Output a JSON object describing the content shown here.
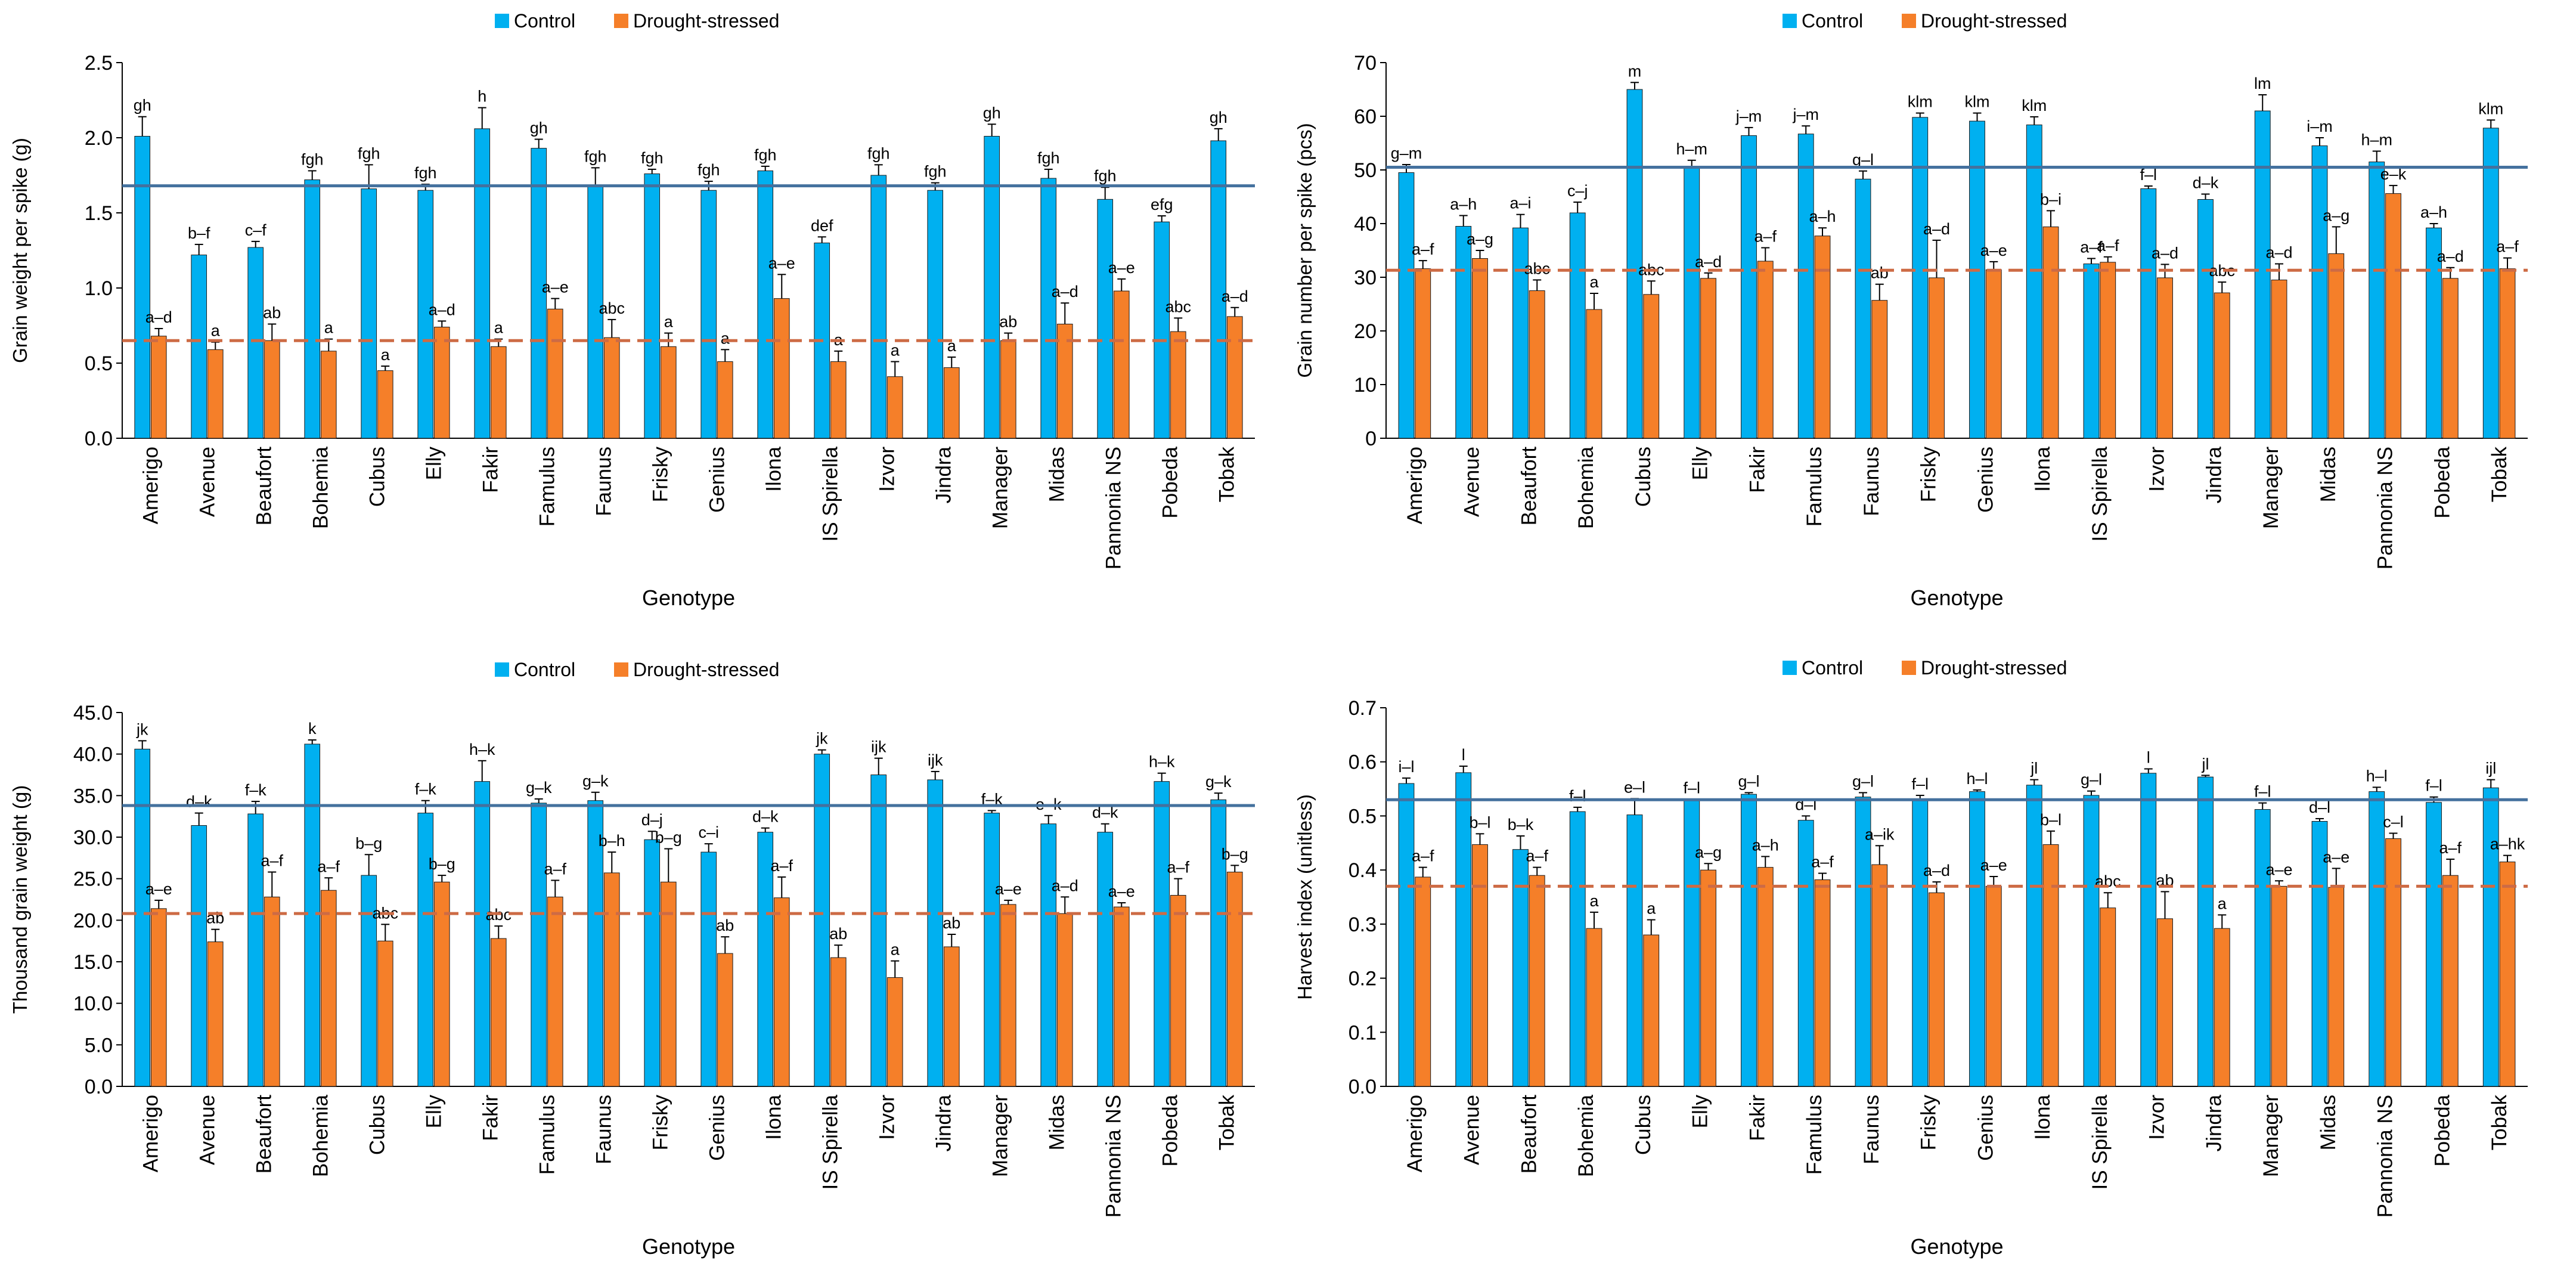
{
  "colors": {
    "control": "#00B0F0",
    "drought": "#F57F29",
    "control_line": "#44719E",
    "drought_line": "#CD6B45",
    "bar_edge": "#1A1A1A"
  },
  "legend": {
    "control": "Control",
    "drought": "Drought-stressed"
  },
  "genotypes": [
    "Amerigo",
    "Avenue",
    "Beaufort",
    "Bohemia",
    "Cubus",
    "Elly",
    "Fakir",
    "Famulus",
    "Faunus",
    "Frisky",
    "Genius",
    "Ilona",
    "IS Spirella",
    "Izvor",
    "Jindra",
    "Manager",
    "Midas",
    "Pannonia NS",
    "Pobeda",
    "Tobak"
  ],
  "chart_data": [
    {
      "type": "bar",
      "title": "",
      "xlabel": "Genotype",
      "ylabel": "Grain weight per spike (g)",
      "ylim": [
        0,
        2.5
      ],
      "ystep": 0.5,
      "ydecimals": 1,
      "legend_position": "top",
      "categories": [
        "Amerigo",
        "Avenue",
        "Beaufort",
        "Bohemia",
        "Cubus",
        "Elly",
        "Fakir",
        "Famulus",
        "Faunus",
        "Frisky",
        "Genius",
        "Ilona",
        "IS Spirella",
        "Izvor",
        "Jindra",
        "Manager",
        "Midas",
        "Pannonia NS",
        "Pobeda",
        "Tobak"
      ],
      "series": [
        {
          "name": "Control",
          "values": [
            2.01,
            1.22,
            1.27,
            1.72,
            1.66,
            1.65,
            2.06,
            1.93,
            1.68,
            1.76,
            1.65,
            1.78,
            1.3,
            1.75,
            1.65,
            2.01,
            1.73,
            1.59,
            1.44,
            1.98
          ],
          "errors": [
            0.13,
            0.07,
            0.04,
            0.06,
            0.16,
            0.04,
            0.14,
            0.06,
            0.12,
            0.03,
            0.06,
            0.03,
            0.04,
            0.07,
            0.05,
            0.08,
            0.06,
            0.08,
            0.04,
            0.08
          ],
          "labels": [
            "gh",
            "b–f",
            "c–f",
            "fgh",
            "fgh",
            "fgh",
            "h",
            "gh",
            "fgh",
            "fgh",
            "fgh",
            "fgh",
            "def",
            "fgh",
            "fgh",
            "gh",
            "fgh",
            "fgh",
            "efg",
            "gh"
          ]
        },
        {
          "name": "Drought-stressed",
          "values": [
            0.68,
            0.59,
            0.65,
            0.58,
            0.45,
            0.74,
            0.61,
            0.86,
            0.67,
            0.61,
            0.51,
            0.93,
            0.51,
            0.41,
            0.47,
            0.65,
            0.76,
            0.98,
            0.71,
            0.81
          ],
          "errors": [
            0.05,
            0.05,
            0.11,
            0.08,
            0.03,
            0.04,
            0.05,
            0.07,
            0.12,
            0.09,
            0.08,
            0.16,
            0.07,
            0.1,
            0.07,
            0.05,
            0.14,
            0.08,
            0.09,
            0.06
          ],
          "labels": [
            "a–d",
            "a",
            "ab",
            "a",
            "a",
            "a–d",
            "a",
            "a–e",
            "abc",
            "a",
            "a",
            "a–e",
            "a",
            "a",
            "a",
            "ab",
            "a–d",
            "a–e",
            "abc",
            "a–d"
          ]
        }
      ],
      "reference_lines": {
        "control_mean": 1.68,
        "drought_mean": 0.65
      }
    },
    {
      "type": "bar",
      "title": "",
      "xlabel": "Genotype",
      "ylabel": "Grain number per spike (pcs)",
      "ylim": [
        0,
        70
      ],
      "ystep": 10,
      "ydecimals": 0,
      "legend_position": "top",
      "categories": [
        "Amerigo",
        "Avenue",
        "Beaufort",
        "Bohemia",
        "Cubus",
        "Elly",
        "Fakir",
        "Famulus",
        "Faunus",
        "Frisky",
        "Genius",
        "Ilona",
        "IS Spirella",
        "Izvor",
        "Jindra",
        "Manager",
        "Midas",
        "Pannonia NS",
        "Pobeda",
        "Tobak"
      ],
      "series": [
        {
          "name": "Control",
          "values": [
            49.5,
            39.5,
            39.2,
            42.0,
            65.0,
            50.3,
            56.4,
            56.7,
            48.3,
            59.8,
            59.1,
            58.4,
            32.5,
            46.5,
            44.5,
            61.0,
            54.5,
            51.5,
            39.2,
            57.8
          ],
          "errors": [
            1.5,
            2.0,
            2.5,
            2.0,
            1.3,
            1.5,
            1.5,
            1.5,
            1.5,
            0.8,
            1.5,
            1.5,
            1.0,
            0.5,
            1.0,
            3.0,
            1.5,
            2.0,
            0.8,
            1.5
          ],
          "labels": [
            "g–m",
            "a–h",
            "a–i",
            "c–j",
            "m",
            "h–m",
            "j–m",
            "j–m",
            "g–l",
            "klm",
            "klm",
            "klm",
            "a–f",
            "f–l",
            "d–k",
            "lm",
            "i–m",
            "h–m",
            "a–h",
            "klm"
          ]
        },
        {
          "name": "Drought-stressed",
          "values": [
            31.6,
            33.5,
            27.5,
            24.0,
            26.8,
            29.8,
            33.0,
            37.7,
            25.7,
            29.9,
            31.4,
            39.4,
            32.8,
            29.9,
            27.1,
            29.5,
            34.4,
            45.6,
            29.8,
            31.6
          ],
          "errors": [
            1.5,
            1.5,
            2.0,
            3.0,
            2.5,
            1.0,
            2.5,
            1.5,
            3.0,
            7.0,
            1.5,
            3.0,
            1.0,
            2.5,
            2.0,
            3.0,
            5.0,
            1.5,
            2.0,
            2.0
          ],
          "labels": [
            "a–f",
            "a–g",
            "abc",
            "a",
            "abc",
            "a–d",
            "a–f",
            "a–h",
            "ab",
            "a–d",
            "a–e",
            "b–i",
            "a–f",
            "a–d",
            "abc",
            "a–d",
            "a–g",
            "e–k",
            "a–d",
            "a–f"
          ]
        }
      ],
      "reference_lines": {
        "control_mean": 50.5,
        "drought_mean": 31.3
      }
    },
    {
      "type": "bar",
      "title": "",
      "xlabel": "Genotype",
      "ylabel": "Thousand grain weight (g)",
      "ylim": [
        0,
        45
      ],
      "ystep": 5,
      "ydecimals": 1,
      "legend_position": "top",
      "categories": [
        "Amerigo",
        "Avenue",
        "Beaufort",
        "Bohemia",
        "Cubus",
        "Elly",
        "Fakir",
        "Famulus",
        "Faunus",
        "Frisky",
        "Genius",
        "Ilona",
        "IS Spirella",
        "Izvor",
        "Jindra",
        "Manager",
        "Midas",
        "Pannonia NS",
        "Pobeda",
        "Tobak"
      ],
      "series": [
        {
          "name": "Control",
          "values": [
            40.6,
            31.4,
            32.8,
            41.2,
            25.4,
            32.9,
            36.7,
            34.1,
            34.4,
            29.7,
            28.2,
            30.6,
            40.0,
            37.5,
            36.9,
            32.9,
            31.6,
            30.6,
            36.7,
            34.5
          ],
          "errors": [
            1.0,
            1.5,
            1.5,
            0.5,
            2.5,
            1.5,
            2.5,
            0.5,
            1.0,
            1.0,
            1.0,
            0.5,
            0.5,
            2.0,
            1.0,
            0.3,
            1.0,
            1.0,
            1.0,
            0.8
          ],
          "labels": [
            "jk",
            "d–k",
            "f–k",
            "k",
            "b–g",
            "f–k",
            "h–k",
            "g–k",
            "g–k",
            "d–j",
            "c–i",
            "d–k",
            "jk",
            "ijk",
            "ijk",
            "f–k",
            "e–k",
            "d–k",
            "h–k",
            "g–k"
          ]
        },
        {
          "name": "Drought-stressed",
          "values": [
            21.4,
            17.4,
            22.8,
            23.6,
            17.5,
            24.6,
            17.8,
            22.8,
            25.7,
            24.6,
            16.0,
            22.7,
            15.5,
            13.1,
            16.8,
            21.9,
            20.8,
            21.6,
            23.0,
            25.8
          ],
          "errors": [
            1.0,
            1.5,
            3.0,
            1.5,
            2.0,
            0.8,
            1.5,
            2.0,
            2.5,
            4.0,
            2.0,
            2.5,
            1.5,
            2.0,
            1.5,
            0.5,
            2.0,
            0.5,
            2.0,
            0.8
          ],
          "labels": [
            "a–e",
            "ab",
            "a–f",
            "a–f",
            "abc",
            "b–g",
            "abc",
            "a–f",
            "b–h",
            "b–g",
            "ab",
            "a–f",
            "ab",
            "a",
            "ab",
            "a–e",
            "a–d",
            "a–e",
            "a–f",
            "b–g"
          ]
        }
      ],
      "reference_lines": {
        "control_mean": 33.8,
        "drought_mean": 20.8
      }
    },
    {
      "type": "bar",
      "title": "",
      "xlabel": "Genotype",
      "ylabel": "Harvest index (unitless)",
      "ylim": [
        0,
        0.7
      ],
      "ystep": 0.1,
      "ydecimals": 1,
      "legend_position": "top",
      "categories": [
        "Amerigo",
        "Avenue",
        "Beaufort",
        "Bohemia",
        "Cubus",
        "Elly",
        "Fakir",
        "Famulus",
        "Faunus",
        "Frisky",
        "Genius",
        "Ilona",
        "IS Spirella",
        "Izvor",
        "Jindra",
        "Manager",
        "Midas",
        "Pannonia NS",
        "Pobeda",
        "Tobak"
      ],
      "series": [
        {
          "name": "Control",
          "values": [
            0.56,
            0.58,
            0.438,
            0.508,
            0.502,
            0.528,
            0.54,
            0.492,
            0.535,
            0.528,
            0.545,
            0.557,
            0.538,
            0.579,
            0.572,
            0.512,
            0.49,
            0.545,
            0.525,
            0.552
          ],
          "errors": [
            0.01,
            0.012,
            0.025,
            0.008,
            0.03,
            0.003,
            0.003,
            0.008,
            0.008,
            0.01,
            0.003,
            0.01,
            0.008,
            0.008,
            0.003,
            0.012,
            0.005,
            0.008,
            0.01,
            0.015
          ],
          "labels": [
            "i–l",
            "l",
            "b–k",
            "f–l",
            "e–l",
            "f–l",
            "g–l",
            "d–l",
            "g–l",
            "f–l",
            "h–l",
            "jl",
            "g–l",
            "l",
            "jl",
            "f–l",
            "d–l",
            "h–l",
            "f–l",
            "ijl"
          ]
        },
        {
          "name": "Drought-stressed",
          "values": [
            0.387,
            0.447,
            0.39,
            0.292,
            0.28,
            0.4,
            0.405,
            0.382,
            0.41,
            0.358,
            0.37,
            0.447,
            0.33,
            0.31,
            0.292,
            0.37,
            0.368,
            0.458,
            0.39,
            0.415
          ],
          "errors": [
            0.018,
            0.02,
            0.015,
            0.03,
            0.028,
            0.012,
            0.02,
            0.012,
            0.035,
            0.02,
            0.018,
            0.025,
            0.028,
            0.05,
            0.025,
            0.01,
            0.035,
            0.01,
            0.03,
            0.012
          ],
          "labels": [
            "a–f",
            "b–l",
            "a–f",
            "a",
            "a",
            "a–g",
            "a–h",
            "a–f",
            "a–ik",
            "a–d",
            "a–e",
            "b–l",
            "abc",
            "ab",
            "a",
            "a–e",
            "a–e",
            "c–l",
            "a–f",
            "a–hk"
          ]
        }
      ],
      "reference_lines": {
        "control_mean": 0.53,
        "drought_mean": 0.37
      }
    }
  ]
}
